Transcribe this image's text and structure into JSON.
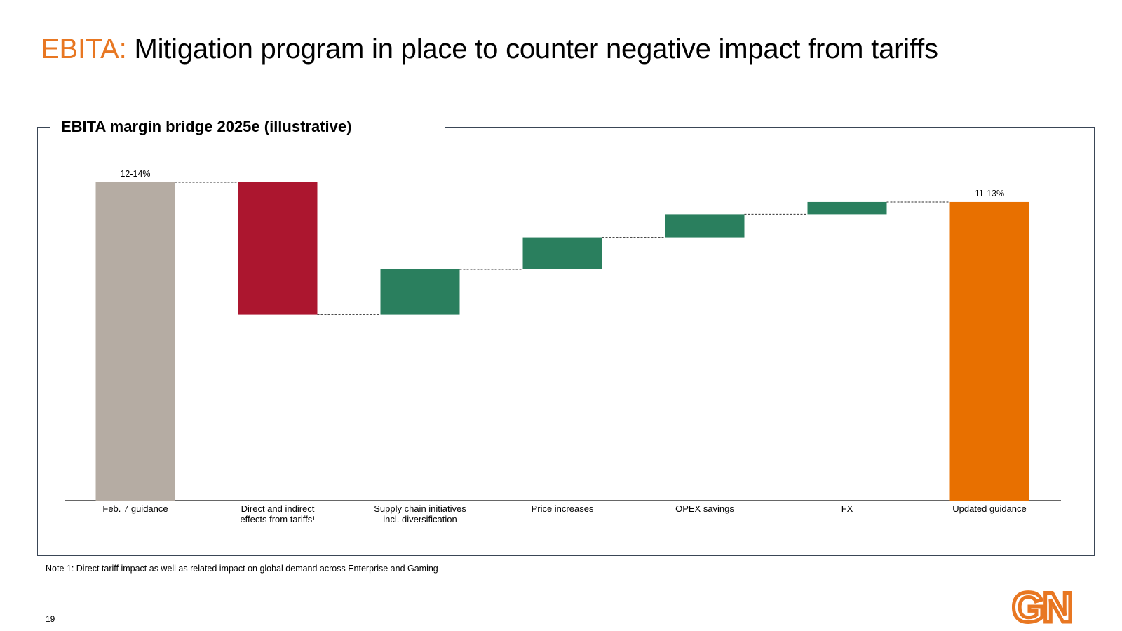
{
  "header": {
    "title_accent": "EBITA:",
    "title_rest": " Mitigation program in place to counter negative impact from tariffs"
  },
  "chart_data": {
    "type": "bar",
    "subtype": "waterfall",
    "title": "EBITA margin bridge 2025e (illustrative)",
    "xlabel": "",
    "ylabel": "",
    "ylim": [
      0,
      14
    ],
    "categories": [
      "Feb. 7 guidance",
      "Direct and indirect effects from tariffs¹",
      "Supply chain initiatives incl. diversification",
      "Price increases",
      "OPEX savings",
      "FX",
      "Updated guidance"
    ],
    "label_lines": [
      [
        "Feb. 7 guidance"
      ],
      [
        "Direct and indirect",
        "effects from tariffs¹"
      ],
      [
        "Supply chain initiatives",
        "incl. diversification"
      ],
      [
        "Price increases"
      ],
      [
        "OPEX savings"
      ],
      [
        "FX"
      ],
      [
        "Updated guidance"
      ]
    ],
    "bars": [
      {
        "kind": "total",
        "start": 0,
        "end": 13.0,
        "color": "#B5ACA3",
        "label": "12-14%"
      },
      {
        "kind": "decrease",
        "start": 13.0,
        "end": 7.6,
        "color": "#AC162F"
      },
      {
        "kind": "increase",
        "start": 7.6,
        "end": 9.45,
        "color": "#2A7F5E"
      },
      {
        "kind": "increase",
        "start": 9.45,
        "end": 10.75,
        "color": "#2A7F5E"
      },
      {
        "kind": "increase",
        "start": 10.75,
        "end": 11.7,
        "color": "#2A7F5E"
      },
      {
        "kind": "increase",
        "start": 11.7,
        "end": 12.2,
        "color": "#2A7F5E"
      },
      {
        "kind": "total",
        "start": 0,
        "end": 12.2,
        "color": "#E87000",
        "label": "11-13%"
      }
    ]
  },
  "footer": {
    "note": "Note 1: Direct tariff impact as well as related impact on global demand across Enterprise and Gaming",
    "page_number": "19",
    "logo_text": "GN",
    "logo_color": "#E87722"
  }
}
